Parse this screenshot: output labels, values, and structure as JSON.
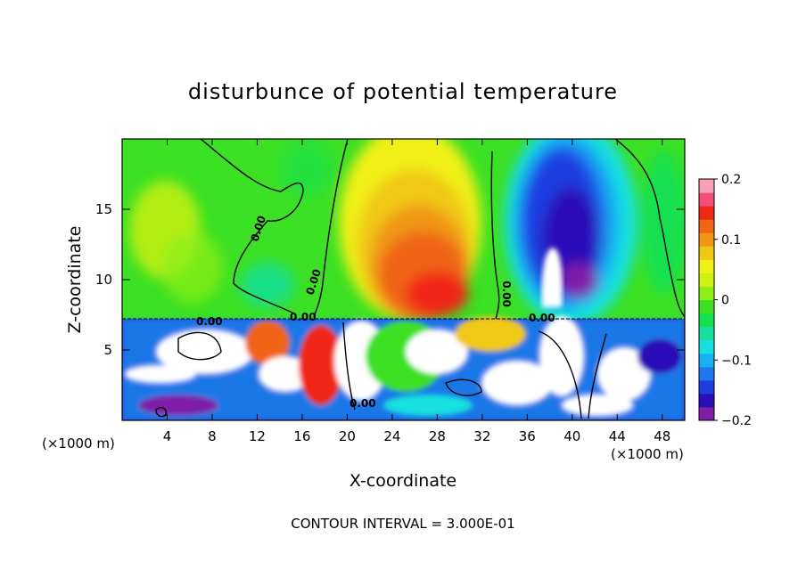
{
  "chart_data": {
    "type": "heatmap",
    "title": "disturbunce of potential temperature",
    "xlabel": "X-coordinate",
    "ylabel": "Z-coordinate",
    "x_unit": "(×1000 m)",
    "x_unit_right": "(×1000 m)",
    "footer": "CONTOUR INTERVAL = 3.000E-01",
    "xlim": [
      0,
      50
    ],
    "ylim": [
      0,
      20
    ],
    "x_ticks": [
      "4",
      "8",
      "12",
      "16",
      "20",
      "24",
      "28",
      "32",
      "36",
      "40",
      "44",
      "48"
    ],
    "x_tick_values": [
      4,
      8,
      12,
      16,
      20,
      24,
      28,
      32,
      36,
      40,
      44,
      48
    ],
    "y_ticks": [
      "5",
      "10",
      "15"
    ],
    "y_tick_values": [
      5,
      10,
      15
    ],
    "colorbar": {
      "ticks": [
        "0.2",
        "0.1",
        "0",
        "−0.1",
        "−0.2"
      ],
      "tick_values": [
        0.2,
        0.1,
        0,
        -0.1,
        -0.2
      ],
      "range": [
        -0.2,
        0.2
      ],
      "colors": [
        "#7f1fa8",
        "#2a0fb8",
        "#1f3ee0",
        "#1f78f0",
        "#18b0f0",
        "#14e0e0",
        "#14e0a0",
        "#14e050",
        "#3ce024",
        "#8cf014",
        "#d0f014",
        "#f0f014",
        "#f0c814",
        "#f09614",
        "#f06414",
        "#f02814",
        "#f0507a",
        "#f8a0b8"
      ]
    },
    "contour_labels": [
      "0.00",
      "0.00",
      "0.00",
      "0.00",
      "0.00",
      "0.00",
      "0.00"
    ],
    "contour_interval": 0.3
  }
}
